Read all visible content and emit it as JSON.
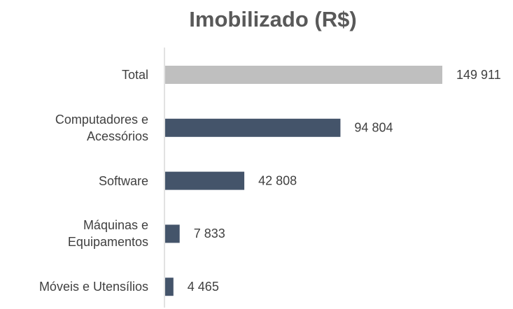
{
  "chart_data": {
    "type": "barh",
    "title": "Imobilizado (R$)",
    "categories": [
      "Total",
      "Computadores e Acessórios",
      "Software",
      "Máquinas e Equipamentos",
      "Móveis e Utensílios"
    ],
    "values": [
      149911,
      94804,
      42808,
      7833,
      4465
    ],
    "value_labels": [
      "149 911",
      "94 804",
      "42 808",
      "7 833",
      "4 465"
    ],
    "colors": [
      "#bfbfbf",
      "#44546a",
      "#44546a",
      "#44546a",
      "#44546a"
    ]
  }
}
